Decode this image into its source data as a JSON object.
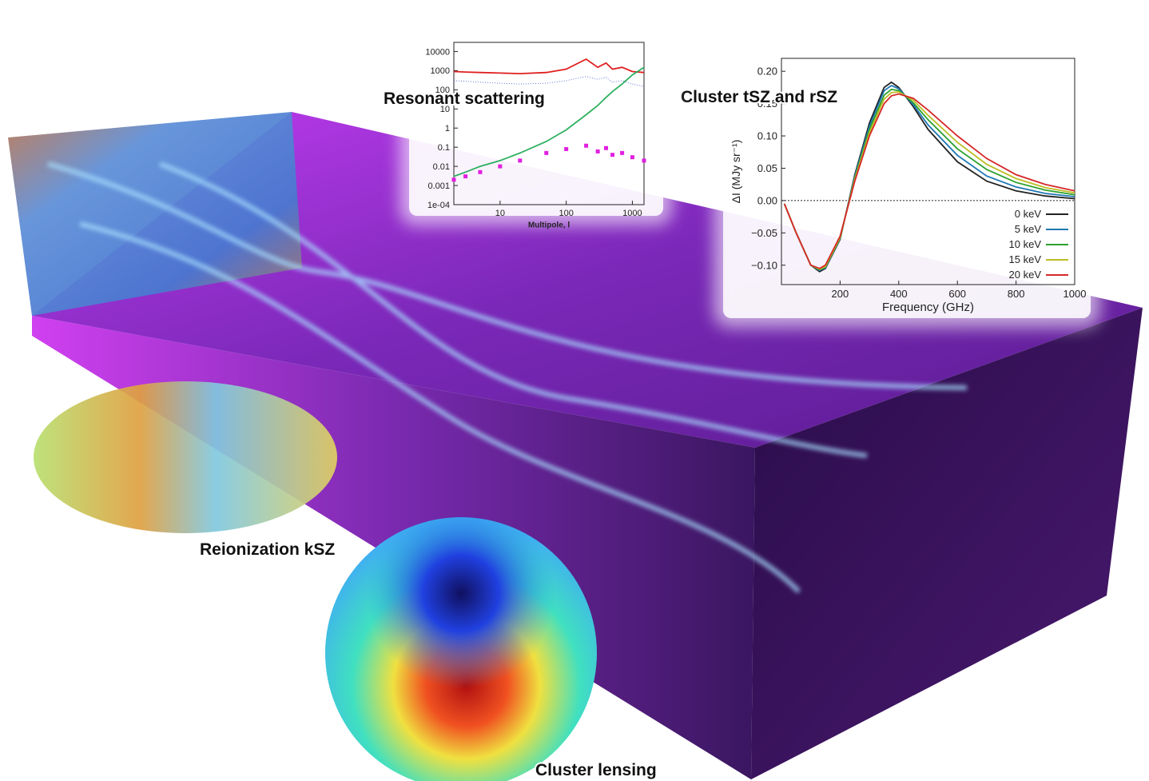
{
  "labels": {
    "kinetic": "Reionization kSZ",
    "lensing": "Cluster lensing"
  },
  "chart_data": [
    {
      "type": "line",
      "title": "Cluster tSZ and rSZ",
      "xlabel": "Frequency (GHz)",
      "ylabel": "ΔI (MJy sr⁻¹)",
      "x": [
        10,
        50,
        100,
        130,
        150,
        200,
        250,
        300,
        350,
        375,
        400,
        450,
        500,
        600,
        700,
        800,
        900,
        1000
      ],
      "xlim": [
        0,
        1000
      ],
      "ylim": [
        -0.13,
        0.22
      ],
      "xticks": [
        200,
        400,
        600,
        800,
        1000
      ],
      "yticks": [
        {
          "value": -0.1,
          "label": "−0.10"
        },
        {
          "value": -0.05,
          "label": "−0.05"
        },
        {
          "value": 0,
          "label": "0.00"
        },
        {
          "value": 0.05,
          "label": "0.05"
        },
        {
          "value": 0.1,
          "label": "0.10"
        },
        {
          "value": 0.15,
          "label": "0.15"
        },
        {
          "value": 0.2,
          "label": "0.20"
        }
      ],
      "zero_line": true,
      "legend": "lower right",
      "series": [
        {
          "name": "0 keV",
          "color": "#222222",
          "values": [
            -0.005,
            -0.05,
            -0.1,
            -0.11,
            -0.105,
            -0.06,
            0.04,
            0.12,
            0.175,
            0.183,
            0.175,
            0.145,
            0.11,
            0.06,
            0.03,
            0.015,
            0.007,
            0.003
          ]
        },
        {
          "name": "5 keV",
          "color": "#1f77b4",
          "values": [
            -0.005,
            -0.05,
            -0.1,
            -0.108,
            -0.104,
            -0.059,
            0.038,
            0.115,
            0.17,
            0.178,
            0.173,
            0.148,
            0.117,
            0.07,
            0.038,
            0.021,
            0.011,
            0.006
          ]
        },
        {
          "name": "10 keV",
          "color": "#2ca02c",
          "values": [
            -0.005,
            -0.05,
            -0.1,
            -0.107,
            -0.103,
            -0.058,
            0.035,
            0.11,
            0.163,
            0.172,
            0.17,
            0.151,
            0.125,
            0.08,
            0.048,
            0.028,
            0.016,
            0.009
          ]
        },
        {
          "name": "15 keV",
          "color": "#bcbd22",
          "values": [
            -0.005,
            -0.05,
            -0.1,
            -0.106,
            -0.102,
            -0.057,
            0.033,
            0.105,
            0.157,
            0.167,
            0.168,
            0.155,
            0.132,
            0.09,
            0.056,
            0.034,
            0.02,
            0.012
          ]
        },
        {
          "name": "20 keV",
          "color": "#d62728",
          "values": [
            -0.005,
            -0.05,
            -0.1,
            -0.105,
            -0.1,
            -0.055,
            0.03,
            0.1,
            0.15,
            0.162,
            0.165,
            0.158,
            0.14,
            0.1,
            0.065,
            0.04,
            0.025,
            0.015
          ]
        }
      ]
    },
    {
      "type": "line",
      "title": "Resonant scattering",
      "xlabel": "Multipole, l",
      "xlog": true,
      "ylog": true,
      "x": [
        2,
        3,
        5,
        10,
        20,
        50,
        100,
        200,
        300,
        400,
        500,
        700,
        1000,
        1500
      ],
      "xlim": [
        2,
        1500
      ],
      "ylim": [
        0.0001,
        30000
      ],
      "xticks": [
        10,
        100,
        1000
      ],
      "yticks": [
        {
          "value": 0.0001,
          "label": "1e-04"
        },
        0.001,
        0.01,
        0.1,
        1,
        10,
        100,
        1000,
        10000
      ],
      "series": [
        {
          "color": "#e02020",
          "style": "solid",
          "values": [
            900,
            850,
            800,
            750,
            700,
            800,
            1200,
            4000,
            1500,
            2500,
            1200,
            1500,
            900,
            800
          ]
        },
        {
          "color": "#6070d0",
          "style": "dotted",
          "values": [
            300,
            280,
            250,
            220,
            200,
            220,
            300,
            500,
            350,
            450,
            250,
            300,
            200,
            150
          ]
        },
        {
          "color": "#30b060",
          "style": "solid",
          "values": [
            0.003,
            0.005,
            0.01,
            0.02,
            0.05,
            0.2,
            0.8,
            5,
            15,
            40,
            80,
            200,
            600,
            1500
          ]
        },
        {
          "color": "#e020e0",
          "style": "points",
          "values": [
            0.002,
            0.003,
            0.005,
            0.01,
            0.02,
            0.05,
            0.08,
            0.12,
            0.06,
            0.09,
            0.04,
            0.05,
            0.03,
            0.02
          ]
        }
      ]
    }
  ]
}
